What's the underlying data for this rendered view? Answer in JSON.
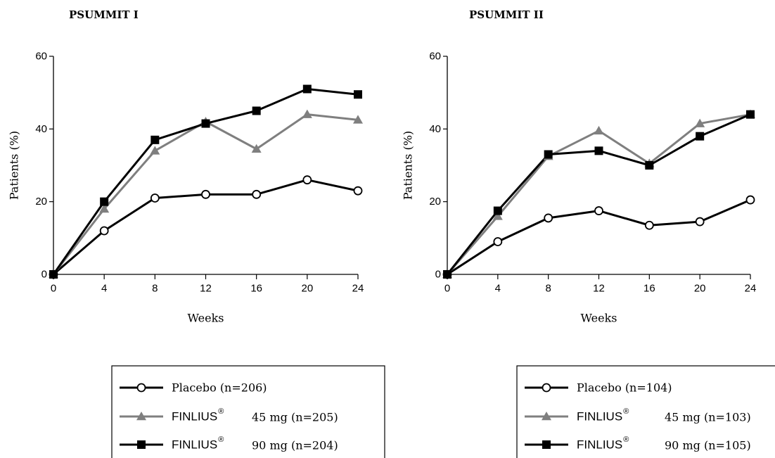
{
  "chart_data": [
    {
      "type": "line",
      "title": "PSUMMIT I",
      "xlabel": "Weeks",
      "ylabel": "Patients (%)",
      "x": [
        0,
        4,
        8,
        12,
        16,
        20,
        24
      ],
      "xticks": [
        "0",
        "4",
        "8",
        "12",
        "16",
        "20",
        "24"
      ],
      "yticks": [
        "0",
        "20",
        "40",
        "60"
      ],
      "xlim": [
        0,
        24
      ],
      "ylim": [
        0,
        60
      ],
      "grid": false,
      "legend_placement": "bottom",
      "series": [
        {
          "name": "Placebo (n=206)",
          "marker": "open-circle",
          "color": "#000000",
          "values": [
            0,
            12,
            21,
            22,
            22,
            26,
            23
          ]
        },
        {
          "name_brand": "FINLIUS",
          "name_mark": "®",
          "name_rest": "45 mg (n=205)",
          "marker": "triangle",
          "color": "#7f7f7f",
          "values": [
            0,
            18,
            34,
            42,
            34.5,
            44,
            42.5
          ]
        },
        {
          "name_brand": "FINLIUS",
          "name_mark": "®",
          "name_rest": "90 mg (n=204)",
          "marker": "square",
          "color": "#000000",
          "values": [
            0,
            20,
            37,
            41.5,
            45,
            51,
            49.5
          ]
        }
      ]
    },
    {
      "type": "line",
      "title": "PSUMMIT II",
      "xlabel": "Weeks",
      "ylabel": "Patients (%)",
      "x": [
        0,
        4,
        8,
        12,
        16,
        20,
        24
      ],
      "xticks": [
        "0",
        "4",
        "8",
        "12",
        "16",
        "20",
        "24"
      ],
      "yticks": [
        "0",
        "20",
        "40",
        "60"
      ],
      "xlim": [
        0,
        24
      ],
      "ylim": [
        0,
        60
      ],
      "grid": false,
      "legend_placement": "bottom",
      "series": [
        {
          "name": "Placebo (n=104)",
          "marker": "open-circle",
          "color": "#000000",
          "values": [
            0,
            9,
            15.5,
            17.5,
            13.5,
            14.5,
            20.5
          ]
        },
        {
          "name_brand": "FINLIUS",
          "name_mark": "®",
          "name_rest": "45 mg (n=103)",
          "marker": "triangle",
          "color": "#7f7f7f",
          "values": [
            0,
            16,
            32.5,
            39.5,
            30.5,
            41.5,
            44
          ]
        },
        {
          "name_brand": "FINLIUS",
          "name_mark": "®",
          "name_rest": "90 mg (n=105)",
          "marker": "square",
          "color": "#000000",
          "values": [
            0,
            17.5,
            33,
            34,
            30,
            38,
            44
          ]
        }
      ]
    }
  ]
}
